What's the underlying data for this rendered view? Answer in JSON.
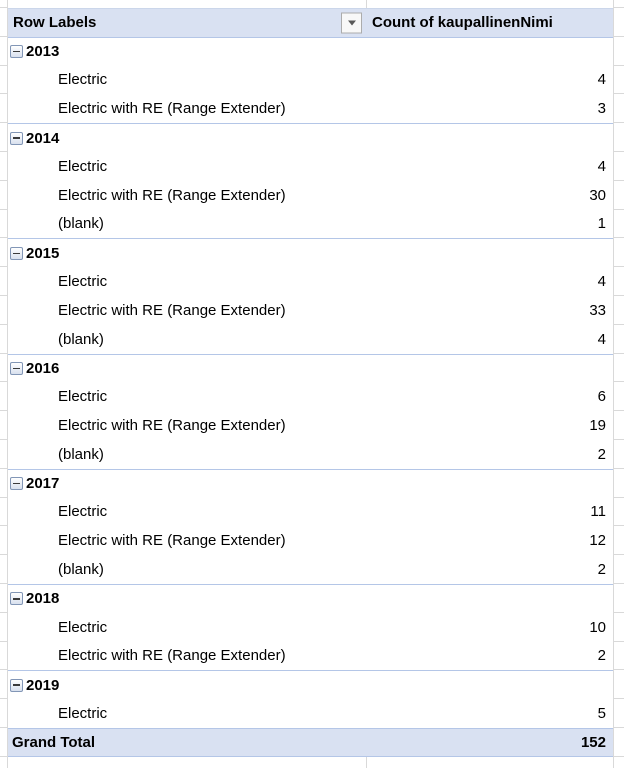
{
  "colors": {
    "header_bg": "#D9E1F2",
    "accent_border": "#B4C6E7",
    "gridline": "#D9D9D9",
    "text": "#000000",
    "filter_btn_bg": "#F8F8F8",
    "filter_btn_border": "#ACACAC",
    "filter_arrow": "#595959",
    "collapse_border": "#8296B6",
    "collapse_bg": "#D8E0EE"
  },
  "icons": {
    "filter": "chevron-down-triangle",
    "collapse": "minus-box"
  },
  "table": {
    "header": {
      "row_labels": "Row Labels",
      "count_label": "Count of kaupallinenNimi"
    },
    "rows": [
      {
        "type": "year",
        "label": "2013",
        "value": ""
      },
      {
        "type": "item",
        "label": "Electric",
        "value": 4
      },
      {
        "type": "item",
        "label": "Electric with RE (Range Extender)",
        "value": 3
      },
      {
        "type": "year",
        "label": "2014",
        "value": ""
      },
      {
        "type": "item",
        "label": "Electric",
        "value": 4
      },
      {
        "type": "item",
        "label": "Electric with RE (Range Extender)",
        "value": 30
      },
      {
        "type": "item",
        "label": "(blank)",
        "value": 1
      },
      {
        "type": "year",
        "label": "2015",
        "value": ""
      },
      {
        "type": "item",
        "label": "Electric",
        "value": 4
      },
      {
        "type": "item",
        "label": "Electric with RE (Range Extender)",
        "value": 33
      },
      {
        "type": "item",
        "label": "(blank)",
        "value": 4
      },
      {
        "type": "year",
        "label": "2016",
        "value": ""
      },
      {
        "type": "item",
        "label": "Electric",
        "value": 6
      },
      {
        "type": "item",
        "label": "Electric with RE (Range Extender)",
        "value": 19
      },
      {
        "type": "item",
        "label": "(blank)",
        "value": 2
      },
      {
        "type": "year",
        "label": "2017",
        "value": ""
      },
      {
        "type": "item",
        "label": "Electric",
        "value": 11
      },
      {
        "type": "item",
        "label": "Electric with RE (Range Extender)",
        "value": 12
      },
      {
        "type": "item",
        "label": "(blank)",
        "value": 2
      },
      {
        "type": "year",
        "label": "2018",
        "value": ""
      },
      {
        "type": "item",
        "label": "Electric",
        "value": 10
      },
      {
        "type": "item",
        "label": "Electric with RE (Range Extender)",
        "value": 2
      },
      {
        "type": "year",
        "label": "2019",
        "value": ""
      },
      {
        "type": "item",
        "label": "Electric",
        "value": 5
      },
      {
        "type": "grand",
        "label": "Grand Total",
        "value": 152
      }
    ]
  }
}
